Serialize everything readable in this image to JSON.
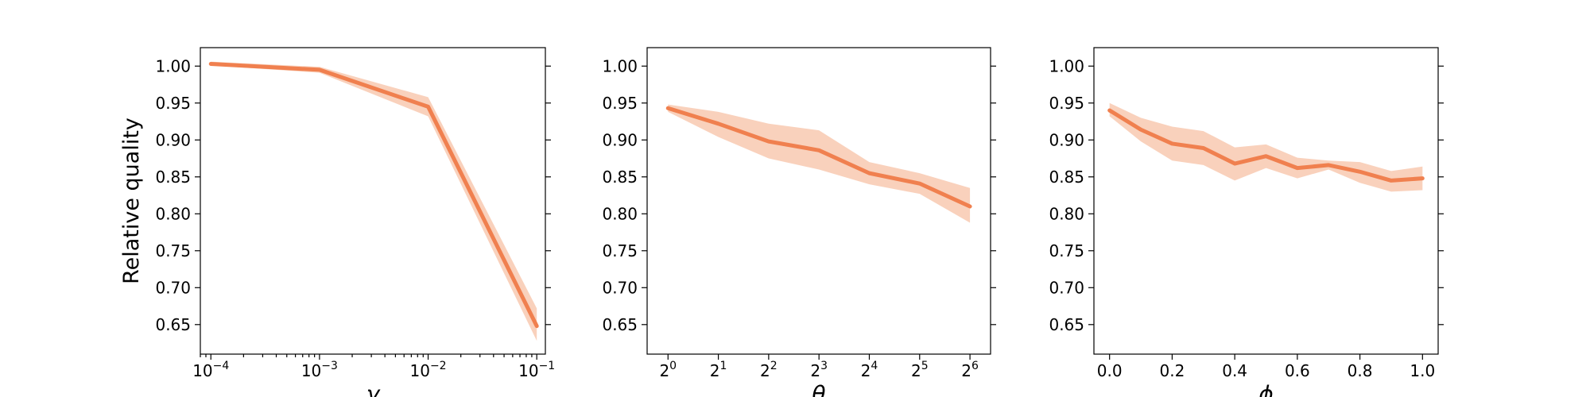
{
  "colors": {
    "line": "#f0804f",
    "band": "#f7c1a6"
  },
  "chart_data": [
    {
      "type": "line",
      "xlabel": "γ",
      "ylabel": "Relative quality",
      "xscale": "log",
      "xlim": [
        8e-05,
        0.12
      ],
      "ylim": [
        0.61,
        1.025
      ],
      "xticks": [
        0.0001,
        0.001,
        0.01,
        0.1
      ],
      "xtick_labels": [
        "10^−4",
        "10^−3",
        "10^−2",
        "10^−1"
      ],
      "yticks": [
        0.65,
        0.7,
        0.75,
        0.8,
        0.85,
        0.9,
        0.95,
        1.0
      ],
      "ytick_labels": [
        "0.65",
        "0.70",
        "0.75",
        "0.80",
        "0.85",
        "0.90",
        "0.95",
        "1.00"
      ],
      "x": [
        0.0001,
        0.001,
        0.01,
        0.1
      ],
      "y": [
        1.003,
        0.995,
        0.945,
        0.648
      ],
      "lower": [
        1.001,
        0.991,
        0.932,
        0.628
      ],
      "upper": [
        1.006,
        0.999,
        0.958,
        0.672
      ]
    },
    {
      "type": "line",
      "xlabel": "θ",
      "ylabel": "",
      "xscale": "log2",
      "xlim": [
        0.75,
        85
      ],
      "ylim": [
        0.61,
        1.025
      ],
      "xticks": [
        1,
        2,
        4,
        8,
        16,
        32,
        64
      ],
      "xtick_labels": [
        "2^0",
        "2^1",
        "2^2",
        "2^3",
        "2^4",
        "2^5",
        "2^6"
      ],
      "yticks": [
        0.65,
        0.7,
        0.75,
        0.8,
        0.85,
        0.9,
        0.95,
        1.0
      ],
      "ytick_labels": [
        "0.65",
        "0.70",
        "0.75",
        "0.80",
        "0.85",
        "0.90",
        "0.95",
        "1.00"
      ],
      "x": [
        1,
        2,
        4,
        8,
        16,
        32,
        64
      ],
      "y": [
        0.943,
        0.922,
        0.898,
        0.886,
        0.855,
        0.841,
        0.81
      ],
      "lower": [
        0.938,
        0.904,
        0.875,
        0.86,
        0.84,
        0.827,
        0.788
      ],
      "upper": [
        0.948,
        0.938,
        0.922,
        0.913,
        0.87,
        0.855,
        0.835
      ]
    },
    {
      "type": "line",
      "xlabel": "ϕ",
      "ylabel": "",
      "xscale": "linear",
      "xlim": [
        -0.05,
        1.05
      ],
      "ylim": [
        0.61,
        1.025
      ],
      "xticks": [
        0.0,
        0.2,
        0.4,
        0.6,
        0.8,
        1.0
      ],
      "xtick_labels": [
        "0.0",
        "0.2",
        "0.4",
        "0.6",
        "0.8",
        "1.0"
      ],
      "yticks": [
        0.65,
        0.7,
        0.75,
        0.8,
        0.85,
        0.9,
        0.95,
        1.0
      ],
      "ytick_labels": [
        "0.65",
        "0.70",
        "0.75",
        "0.80",
        "0.85",
        "0.90",
        "0.95",
        "1.00"
      ],
      "x": [
        0.0,
        0.1,
        0.2,
        0.3,
        0.4,
        0.5,
        0.6,
        0.7,
        0.8,
        0.9,
        1.0
      ],
      "y": [
        0.94,
        0.914,
        0.895,
        0.889,
        0.868,
        0.878,
        0.862,
        0.866,
        0.857,
        0.845,
        0.848
      ],
      "lower": [
        0.932,
        0.898,
        0.872,
        0.866,
        0.845,
        0.862,
        0.848,
        0.86,
        0.842,
        0.83,
        0.832
      ],
      "upper": [
        0.95,
        0.93,
        0.918,
        0.912,
        0.89,
        0.894,
        0.876,
        0.872,
        0.87,
        0.858,
        0.864
      ]
    }
  ]
}
